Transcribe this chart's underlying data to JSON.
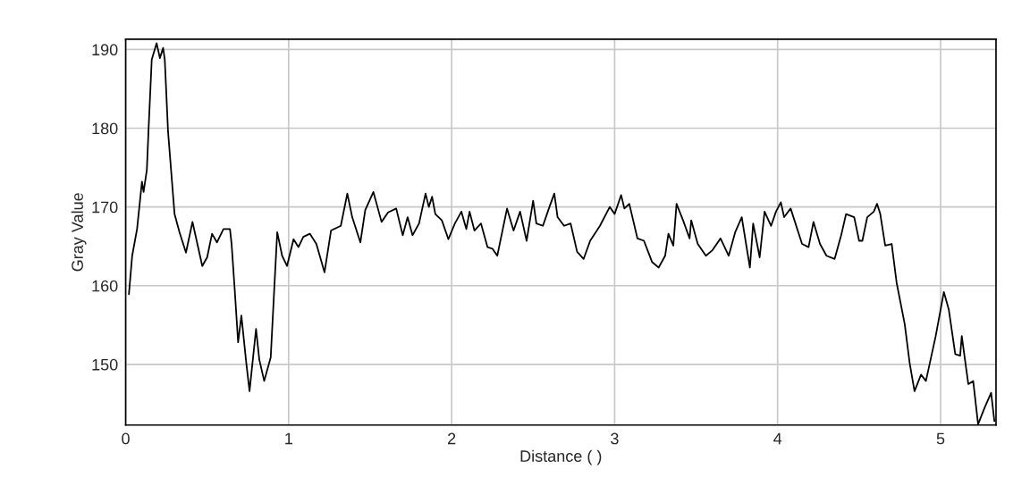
{
  "chart_data": {
    "type": "line",
    "xlabel": "Distance ( )",
    "ylabel": "Gray Value",
    "x": [
      0.02,
      0.04,
      0.07,
      0.1,
      0.11,
      0.13,
      0.14,
      0.16,
      0.19,
      0.21,
      0.23,
      0.24,
      0.26,
      0.3,
      0.33,
      0.37,
      0.41,
      0.44,
      0.47,
      0.5,
      0.53,
      0.56,
      0.6,
      0.64,
      0.65,
      0.67,
      0.69,
      0.71,
      0.74,
      0.76,
      0.8,
      0.82,
      0.85,
      0.89,
      0.91,
      0.93,
      0.96,
      0.99,
      1.03,
      1.06,
      1.09,
      1.13,
      1.17,
      1.22,
      1.26,
      1.32,
      1.36,
      1.39,
      1.44,
      1.47,
      1.52,
      1.57,
      1.61,
      1.66,
      1.7,
      1.73,
      1.76,
      1.8,
      1.84,
      1.86,
      1.88,
      1.9,
      1.94,
      1.98,
      2.02,
      2.06,
      2.09,
      2.11,
      2.14,
      2.18,
      2.22,
      2.25,
      2.28,
      2.31,
      2.34,
      2.38,
      2.42,
      2.46,
      2.5,
      2.52,
      2.56,
      2.6,
      2.63,
      2.65,
      2.69,
      2.73,
      2.77,
      2.81,
      2.85,
      2.91,
      2.97,
      3.0,
      3.04,
      3.06,
      3.09,
      3.14,
      3.18,
      3.23,
      3.27,
      3.31,
      3.33,
      3.36,
      3.38,
      3.42,
      3.46,
      3.47,
      3.51,
      3.56,
      3.6,
      3.65,
      3.7,
      3.74,
      3.78,
      3.83,
      3.85,
      3.89,
      3.92,
      3.96,
      3.99,
      4.02,
      4.04,
      4.08,
      4.15,
      4.19,
      4.22,
      4.26,
      4.3,
      4.35,
      4.39,
      4.42,
      4.47,
      4.5,
      4.52,
      4.55,
      4.59,
      4.61,
      4.63,
      4.66,
      4.7,
      4.73,
      4.78,
      4.81,
      4.84,
      4.88,
      4.91,
      4.97,
      5.02,
      5.05,
      5.09,
      5.12,
      5.13,
      5.17,
      5.2,
      5.23,
      5.27,
      5.31,
      5.33
    ],
    "series": [
      {
        "color": "#000000",
        "values": [
          158.9,
          163.8,
          167.2,
          173.2,
          171.9,
          174.7,
          179.6,
          188.7,
          190.8,
          188.9,
          190.2,
          188.7,
          179.6,
          169.1,
          166.8,
          164.2,
          168.1,
          165.3,
          162.5,
          163.6,
          166.6,
          165.5,
          167.2,
          167.2,
          165.3,
          159.2,
          152.8,
          156.2,
          150.2,
          146.6,
          154.5,
          150.6,
          147.9,
          150.9,
          158.9,
          166.8,
          163.8,
          162.5,
          165.9,
          164.9,
          166.2,
          166.6,
          165.3,
          161.7,
          167.0,
          167.6,
          171.7,
          168.7,
          165.5,
          169.6,
          171.9,
          168.1,
          169.3,
          169.8,
          166.4,
          168.7,
          166.4,
          167.9,
          171.7,
          170.0,
          171.3,
          169.1,
          168.3,
          165.9,
          167.9,
          169.4,
          167.2,
          169.4,
          167.0,
          167.9,
          164.9,
          164.7,
          163.8,
          166.8,
          169.8,
          167.0,
          169.4,
          165.7,
          170.8,
          167.9,
          167.6,
          170.0,
          171.7,
          168.7,
          167.6,
          167.9,
          164.3,
          163.4,
          165.7,
          167.6,
          170.0,
          169.1,
          171.5,
          169.8,
          170.4,
          166.0,
          165.7,
          163.0,
          162.3,
          163.8,
          166.6,
          165.1,
          170.4,
          168.3,
          166.0,
          168.3,
          165.3,
          163.8,
          164.5,
          166.0,
          163.8,
          166.8,
          168.7,
          162.3,
          167.9,
          163.6,
          169.4,
          167.6,
          169.4,
          170.6,
          168.7,
          169.8,
          165.3,
          164.9,
          168.1,
          165.3,
          163.8,
          163.4,
          166.4,
          169.1,
          168.7,
          165.7,
          165.7,
          168.7,
          169.4,
          170.4,
          169.1,
          165.1,
          165.3,
          160.4,
          155.1,
          150.2,
          146.6,
          148.7,
          147.9,
          153.6,
          159.2,
          157.0,
          151.3,
          151.1,
          153.6,
          147.5,
          147.9,
          142.4,
          144.5,
          146.4,
          142.8
        ]
      }
    ],
    "xlim": [
      0,
      5.34
    ],
    "xticks": [
      0,
      1,
      2,
      3,
      4,
      5
    ],
    "ylim": [
      142.3,
      191.3
    ],
    "yticks": [
      150,
      160,
      170,
      180,
      190
    ],
    "grid": true,
    "line_style": "solid"
  }
}
